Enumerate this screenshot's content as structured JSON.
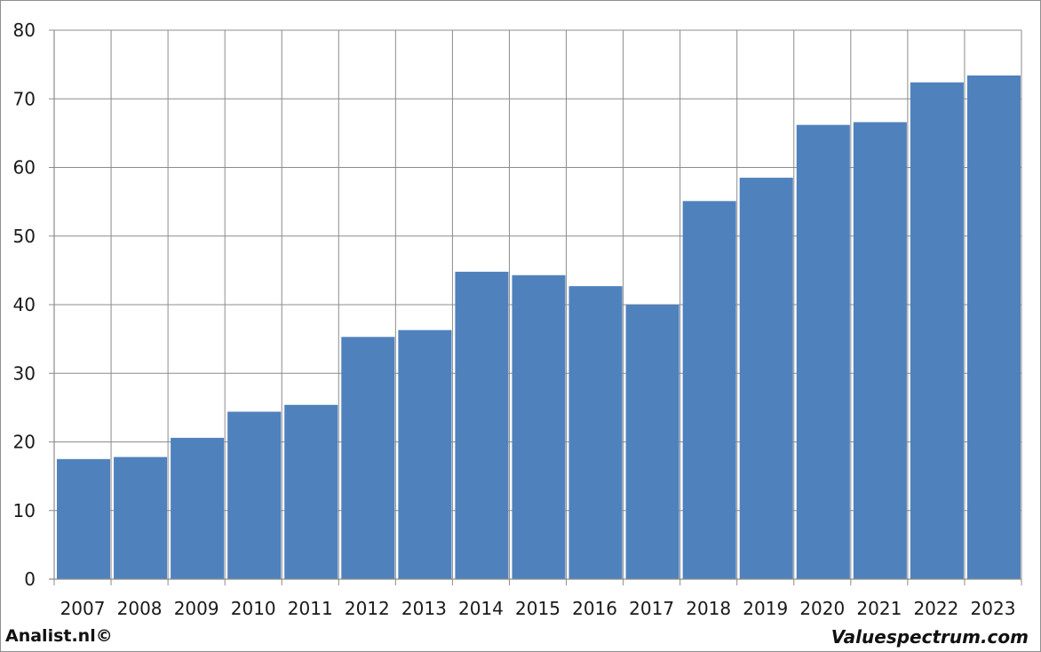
{
  "chart_data": {
    "type": "bar",
    "categories": [
      "2007",
      "2008",
      "2009",
      "2010",
      "2011",
      "2012",
      "2013",
      "2014",
      "2015",
      "2016",
      "2017",
      "2018",
      "2019",
      "2020",
      "2021",
      "2022",
      "2023"
    ],
    "values": [
      17.5,
      17.8,
      20.6,
      24.4,
      25.4,
      35.3,
      36.3,
      44.8,
      44.3,
      42.7,
      40.0,
      55.1,
      58.5,
      66.2,
      66.6,
      72.4,
      73.4
    ],
    "title": "",
    "xlabel": "",
    "ylabel": "",
    "ylim": [
      0,
      80
    ],
    "yticks": [
      0,
      10,
      20,
      30,
      40,
      50,
      60,
      70,
      80
    ],
    "grid": true,
    "bar_color": "#4f81bd"
  },
  "footer": {
    "left": "Analist.nl©",
    "right": "Valuespectrum.com"
  }
}
